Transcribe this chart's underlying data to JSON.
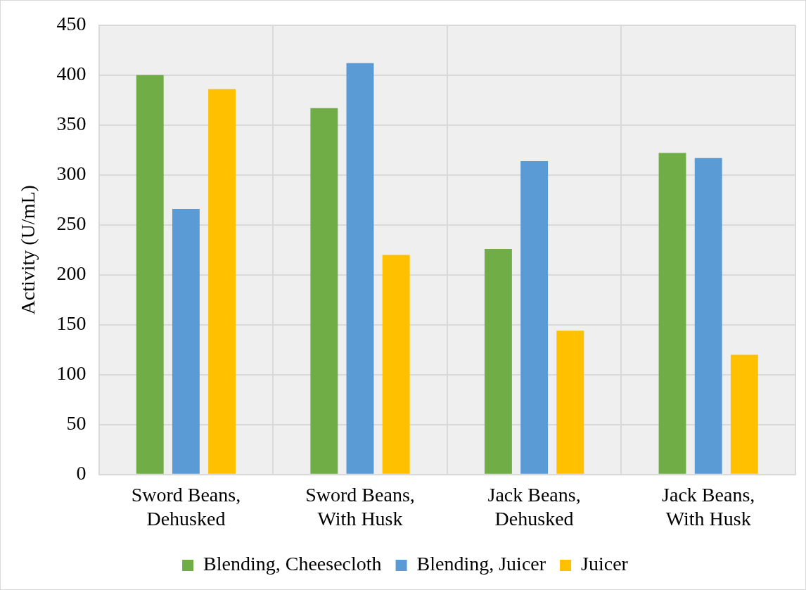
{
  "chart_data": {
    "type": "bar",
    "ylabel": "Activity (U/mL)",
    "categories": [
      "Sword Beans, Dehusked",
      "Sword Beans, With Husk",
      "Jack Beans, Dehusked",
      "Jack Beans, With Husk"
    ],
    "series": [
      {
        "name": "Blending, Cheesecloth",
        "color": "#70ad47",
        "values": [
          400,
          367,
          226,
          322
        ]
      },
      {
        "name": "Blending, Juicer",
        "color": "#5b9bd5",
        "values": [
          266,
          412,
          314,
          317
        ]
      },
      {
        "name": "Juicer",
        "color": "#ffc000",
        "values": [
          386,
          220,
          144,
          120
        ]
      }
    ],
    "ylim": [
      0,
      450
    ],
    "yticks": [
      0,
      50,
      100,
      150,
      200,
      250,
      300,
      350,
      400,
      450
    ],
    "grid": true,
    "legend": "bottom"
  }
}
